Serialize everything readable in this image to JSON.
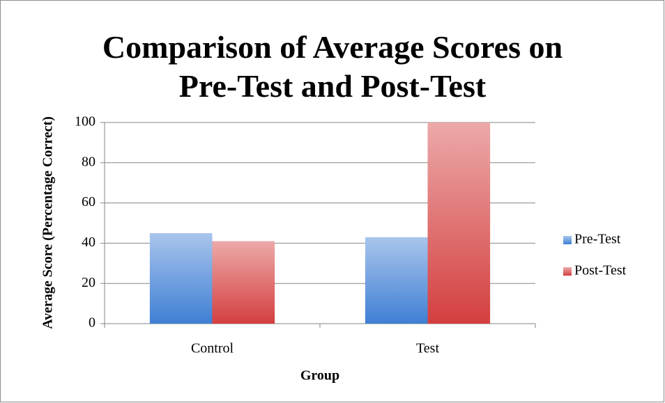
{
  "chart_data": {
    "type": "bar",
    "title": "Comparison of Average Scores on Pre-Test and Post-Test",
    "xlabel": "Group",
    "ylabel": "Average Score (Percentage Correct)",
    "categories": [
      "Control",
      "Test"
    ],
    "series": [
      {
        "name": "Pre-Test",
        "color": "#3f7fd4",
        "values": [
          45,
          43
        ]
      },
      {
        "name": "Post-Test",
        "color": "#d43f3f",
        "values": [
          41,
          100
        ]
      }
    ],
    "ylim": [
      0,
      100
    ],
    "yticks": [
      0,
      20,
      40,
      60,
      80,
      100
    ],
    "grid": true,
    "legend": "right"
  }
}
